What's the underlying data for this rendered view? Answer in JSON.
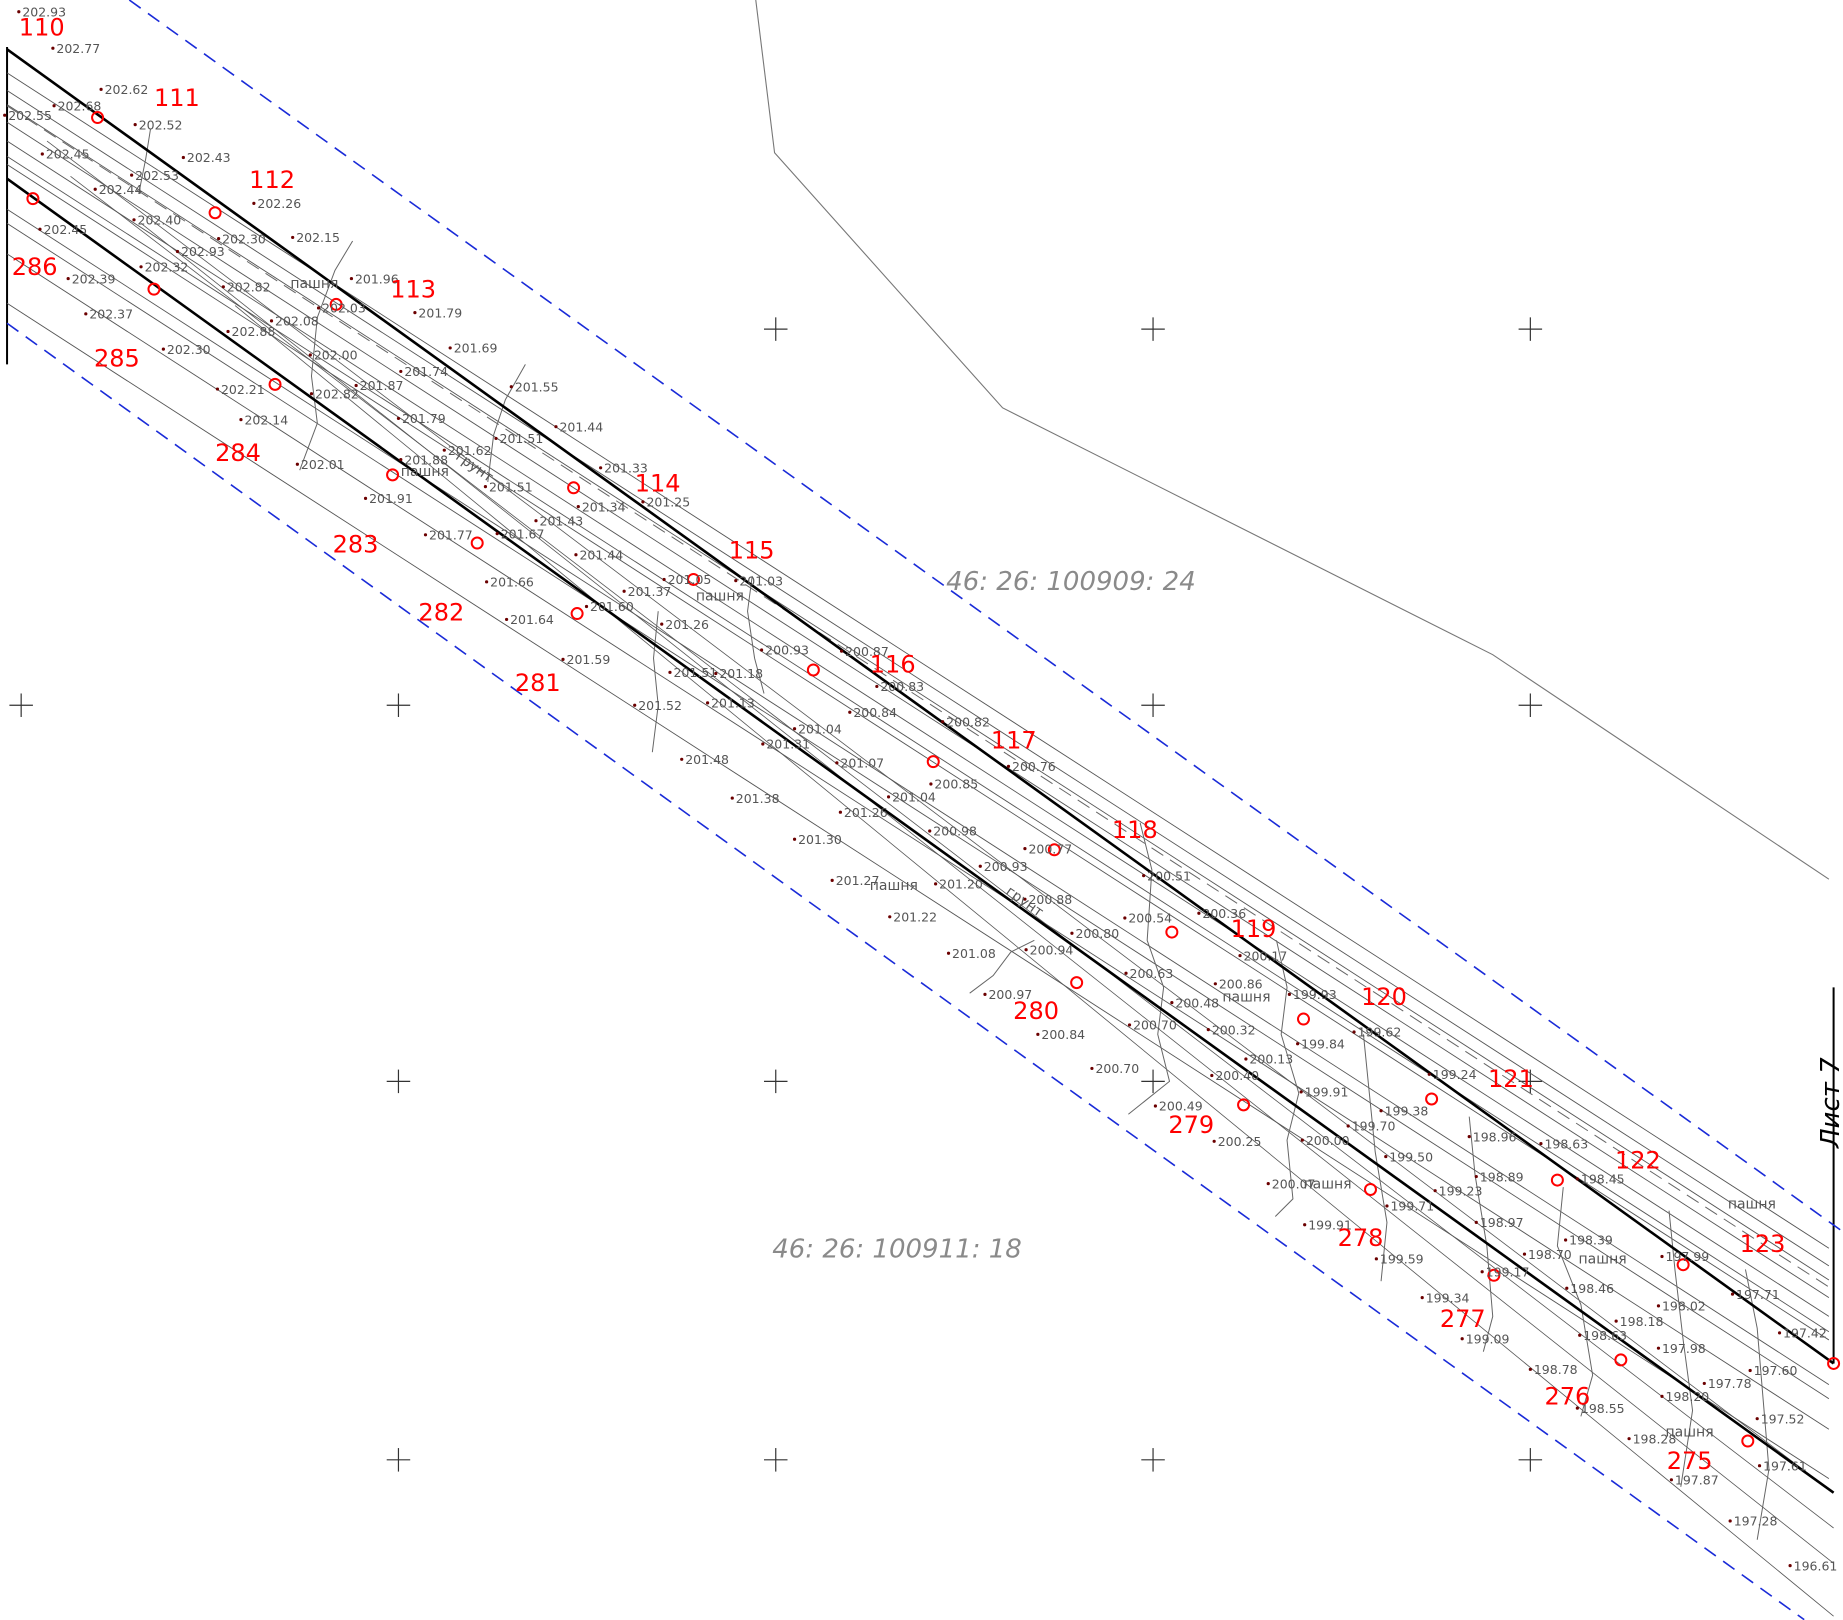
{
  "sheet_label": "Лист 7",
  "colors": {
    "boundary_thick": "#000000",
    "boundary_point": "#ff0000",
    "point_label": "#ff0000",
    "zone_dashed": "#1a2bd8",
    "ground_line": "#555555",
    "elevation_text": "#555555",
    "parcel_text": "#8a8a8a",
    "grid_cross": "#333333"
  },
  "parcels": [
    {
      "id": "46: 26: 100909: 24"
    },
    {
      "id": "46: 26: 100911: 18"
    }
  ],
  "boundary_upper_points": [
    "110",
    "111",
    "112",
    "113",
    "114",
    "115",
    "116",
    "117",
    "118",
    "119",
    "120",
    "121",
    "122",
    "123"
  ],
  "boundary_lower_points": [
    "286",
    "285",
    "284",
    "283",
    "282",
    "281",
    "280",
    "279",
    "278",
    "277",
    "276",
    "275"
  ],
  "land_labels": [
    "пашня",
    "пашня",
    "пашня",
    "пашня",
    "пашня",
    "пашня",
    "пашня",
    "пашня",
    "пашня",
    "грунт",
    "грунт"
  ],
  "elevations": [
    "202.93",
    "202.77",
    "202.62",
    "202.68",
    "202.55",
    "202.52",
    "202.45",
    "202.43",
    "202.53",
    "202.44",
    "202.26",
    "202.40",
    "202.45",
    "202.30",
    "202.15",
    "202.93",
    "202.39",
    "202.32",
    "202.82",
    "202.03",
    "201.96",
    "202.37",
    "202.08",
    "201.79",
    "202.88",
    "202.00",
    "201.69",
    "202.30",
    "201.74",
    "201.87",
    "202.21",
    "202.82",
    "201.55",
    "202.14",
    "201.79",
    "201.44",
    "201.51",
    "201.88",
    "201.62",
    "202.01",
    "201.33",
    "201.51",
    "201.91",
    "201.34",
    "201.25",
    "201.43",
    "201.77",
    "201.67",
    "201.44",
    "201.05",
    "201.03",
    "201.66",
    "201.37",
    "201.60",
    "201.64",
    "201.26",
    "200.93",
    "200.87",
    "201.59",
    "201.51",
    "201.18",
    "200.83",
    "201.52",
    "201.13",
    "200.84",
    "200.82",
    "201.04",
    "201.31",
    "201.48",
    "200.76",
    "201.07",
    "200.85",
    "201.38",
    "201.04",
    "201.26",
    "200.98",
    "200.77",
    "201.30",
    "200.93",
    "200.51",
    "201.27",
    "201.20",
    "200.88",
    "201.22",
    "200.54",
    "200.36",
    "200.80",
    "201.08",
    "200.94",
    "200.17",
    "200.63",
    "200.86",
    "200.97",
    "199.93",
    "200.48",
    "200.84",
    "200.70",
    "200.32",
    "199.84",
    "199.62",
    "200.13",
    "200.70",
    "200.40",
    "199.24",
    "199.91",
    "200.49",
    "199.38",
    "200.25",
    "199.70",
    "200.00",
    "198.96",
    "198.63",
    "199.50",
    "198.89",
    "198.45",
    "200.07",
    "199.23",
    "199.71",
    "199.91",
    "198.97",
    "198.39",
    "199.59",
    "198.70",
    "197.99",
    "199.17",
    "198.46",
    "199.34",
    "198.02",
    "197.71",
    "198.18",
    "198.63",
    "199.09",
    "197.98",
    "197.42",
    "198.78",
    "197.60",
    "197.78",
    "198.20",
    "198.55",
    "197.52",
    "198.28",
    "197.61",
    "197.87",
    "197.28",
    "196.61"
  ]
}
